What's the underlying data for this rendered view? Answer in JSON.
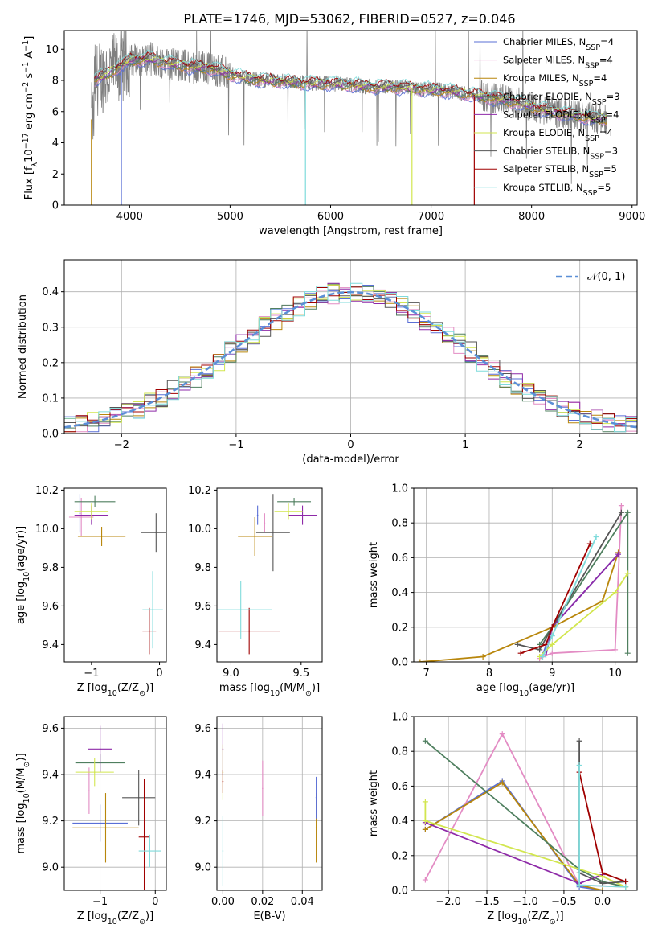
{
  "figure": {
    "title": "PLATE=1746, MJD=53062, FIBERID=0527, z=0.046"
  },
  "models": [
    {
      "name": "Chabrier MILES",
      "nssp": "4",
      "color": "#5a6fd6"
    },
    {
      "name": "Salpeter MILES",
      "nssp": "4",
      "color": "#e38cc4"
    },
    {
      "name": "Kroupa MILES",
      "nssp": "4",
      "color": "#b8860b"
    },
    {
      "name": "Chabrier ELODIE",
      "nssp": "3",
      "color": "#4f7f5f"
    },
    {
      "name": "Salpeter ELODIE",
      "nssp": "4",
      "color": "#8e2aa8"
    },
    {
      "name": "Kroupa ELODIE",
      "nssp": "4",
      "color": "#d2e64f"
    },
    {
      "name": "Chabrier STELIB",
      "nssp": "3",
      "color": "#555555"
    },
    {
      "name": "Salpeter STELIB",
      "nssp": "5",
      "color": "#a00000"
    },
    {
      "name": "Kroupa STELIB",
      "nssp": "5",
      "color": "#7fdbdb"
    }
  ],
  "chart_data": [
    {
      "id": "spectrum",
      "type": "line",
      "xlabel": "wavelength [Angstrom, rest frame]",
      "ylabel_main": "Flux [f",
      "ylabel_sub": "λ",
      "ylabel_tail": "10",
      "ylabel_sup": "−17",
      "ylabel_end": " erg cm",
      "ylabel_sup2": "−2",
      "ylabel_end2": " s",
      "ylabel_sup3": "−1",
      "ylabel_end3": " A",
      "ylabel_sup4": "−1",
      "ylabel_close": "]",
      "xlim": [
        3350,
        9050
      ],
      "ylim": [
        0,
        11.2
      ],
      "xticks": [
        4000,
        5000,
        6000,
        7000,
        8000,
        9000
      ],
      "yticks": [
        0,
        2,
        4,
        6,
        8,
        10
      ],
      "xrange_data": [
        3620,
        8750
      ],
      "data_color": "#808080",
      "legend_position": "top-right",
      "legend_suffix_main": "N",
      "legend_suffix_sub": "SSP",
      "spectrum_continuum": [
        [
          3650,
          8.0
        ],
        [
          3800,
          8.5
        ],
        [
          4000,
          9.3
        ],
        [
          4200,
          9.4
        ],
        [
          4400,
          9.1
        ],
        [
          4600,
          8.9
        ],
        [
          4800,
          8.8
        ],
        [
          5000,
          8.4
        ],
        [
          5200,
          8.1
        ],
        [
          5400,
          8.0
        ],
        [
          5600,
          7.9
        ],
        [
          5800,
          7.8
        ],
        [
          6000,
          7.8
        ],
        [
          6200,
          7.7
        ],
        [
          6400,
          7.6
        ],
        [
          6600,
          7.6
        ],
        [
          6800,
          7.5
        ],
        [
          7000,
          7.4
        ],
        [
          7200,
          7.3
        ],
        [
          7400,
          7.1
        ],
        [
          7600,
          6.9
        ],
        [
          7800,
          6.7
        ],
        [
          8000,
          6.3
        ],
        [
          8200,
          6.0
        ],
        [
          8400,
          5.8
        ],
        [
          8600,
          5.6
        ],
        [
          8750,
          5.5
        ]
      ],
      "model_drops": [
        {
          "model": 2,
          "x": 3620
        },
        {
          "model": 3,
          "x": 3915
        },
        {
          "model": 0,
          "x": 3918
        },
        {
          "model": 8,
          "x": 5750
        },
        {
          "model": 5,
          "x": 6810
        },
        {
          "model": 7,
          "x": 7430
        }
      ]
    },
    {
      "id": "residuals",
      "type": "area",
      "xlabel": "(data-model)/error",
      "ylabel": "Normed distribution",
      "xlim": [
        -2.5,
        2.5
      ],
      "ylim": [
        0,
        0.49
      ],
      "xticks": [
        -2,
        -1,
        0,
        1,
        2
      ],
      "xticklabels": [
        "−2",
        "−1",
        "0",
        "1",
        "2"
      ],
      "yticks": [
        0.0,
        0.1,
        0.2,
        0.3,
        0.4
      ],
      "yticklabels": [
        "0.0",
        "0.1",
        "0.2",
        "0.3",
        "0.4"
      ],
      "bin_width": 0.1,
      "legend_position": "top-right",
      "normal_label": "𝒩(0, 1)",
      "normal_color": "#5b8fd6"
    },
    {
      "id": "age-vs-Z",
      "type": "scatter",
      "xlabel": "Z [log",
      "xlabel_sub": "10",
      "xlabel_tail": "(Z/Z",
      "xlabel_sub2": "⊙",
      "xlabel_close": ")]",
      "ylabel": "age  [log",
      "ylabel_sub": "10",
      "ylabel_tail": "(age/yr)]",
      "xlim": [
        -1.4,
        0.1
      ],
      "ylim": [
        9.31,
        10.21
      ],
      "xticks": [
        -1,
        0
      ],
      "xticklabels": [
        "−1",
        "0"
      ],
      "yticks": [
        9.4,
        9.6,
        9.8,
        10.0,
        10.2
      ],
      "yticklabels": [
        "9.4",
        "9.6",
        "9.8",
        "10.0",
        "10.2"
      ],
      "points": [
        {
          "model": 0,
          "x": -1.17,
          "y": 10.08,
          "xerr": 0.0,
          "yerr": 0.1
        },
        {
          "model": 1,
          "x": -1.15,
          "y": 10.06,
          "xerr": 0.18,
          "yerr": 0.1
        },
        {
          "model": 2,
          "x": -0.85,
          "y": 9.96,
          "xerr": 0.35,
          "yerr": 0.05
        },
        {
          "model": 3,
          "x": -0.95,
          "y": 10.14,
          "xerr": 0.3,
          "yerr": 0.03
        },
        {
          "model": 4,
          "x": -1.0,
          "y": 10.07,
          "xerr": 0.25,
          "yerr": 0.05
        },
        {
          "model": 5,
          "x": -1.0,
          "y": 10.09,
          "xerr": 0.25,
          "yerr": 0.04
        },
        {
          "model": 6,
          "x": -0.05,
          "y": 9.98,
          "xerr": 0.22,
          "yerr": 0.1
        },
        {
          "model": 7,
          "x": -0.15,
          "y": 9.47,
          "xerr": 0.1,
          "yerr": 0.12
        },
        {
          "model": 8,
          "x": -0.1,
          "y": 9.58,
          "xerr": 0.15,
          "yerr": 0.2
        }
      ]
    },
    {
      "id": "age-vs-mass",
      "type": "scatter",
      "xlabel": "mass [log",
      "xlabel_sub": "10",
      "xlabel_tail": "(M/M",
      "xlabel_sub2": "⊙",
      "xlabel_close": ")]",
      "xlim": [
        8.9,
        9.65
      ],
      "ylim": [
        9.31,
        10.21
      ],
      "xticks": [
        9.0,
        9.5
      ],
      "xticklabels": [
        "9.0",
        "9.5"
      ],
      "yticks": [
        9.4,
        9.6,
        9.8,
        10.0,
        10.2
      ],
      "yticklabels": [
        "9.4",
        "9.6",
        "9.8",
        "10.0",
        "10.2"
      ],
      "points": [
        {
          "model": 0,
          "x": 9.19,
          "y": 10.07,
          "xerr": 0.0,
          "yerr": 0.05
        },
        {
          "model": 1,
          "x": 9.24,
          "y": 10.03,
          "xerr": 0.0,
          "yerr": 0.05
        },
        {
          "model": 2,
          "x": 9.17,
          "y": 9.96,
          "xerr": 0.12,
          "yerr": 0.1
        },
        {
          "model": 3,
          "x": 9.45,
          "y": 10.14,
          "xerr": 0.12,
          "yerr": 0.02
        },
        {
          "model": 4,
          "x": 9.51,
          "y": 10.07,
          "xerr": 0.1,
          "yerr": 0.05
        },
        {
          "model": 5,
          "x": 9.41,
          "y": 10.09,
          "xerr": 0.1,
          "yerr": 0.04
        },
        {
          "model": 6,
          "x": 9.3,
          "y": 9.98,
          "xerr": 0.12,
          "yerr": 0.2
        },
        {
          "model": 7,
          "x": 9.13,
          "y": 9.47,
          "xerr": 0.22,
          "yerr": 0.12
        },
        {
          "model": 8,
          "x": 9.07,
          "y": 9.58,
          "xerr": 0.22,
          "yerr": 0.15
        }
      ]
    },
    {
      "id": "massweight-vs-age",
      "type": "line",
      "xlabel": "age  [log",
      "xlabel_sub": "10",
      "xlabel_tail": "(age/yr)]",
      "ylabel": "mass weight",
      "xlim": [
        6.8,
        10.35
      ],
      "ylim": [
        0,
        1.0
      ],
      "xticks": [
        7,
        8,
        9,
        10
      ],
      "yticks": [
        0.0,
        0.2,
        0.4,
        0.6,
        0.8,
        1.0
      ],
      "yticklabels": [
        "0.0",
        "0.2",
        "0.4",
        "0.6",
        "0.8",
        "1.0"
      ],
      "series": [
        {
          "model": 0,
          "x": [
            8.85,
            9.0,
            10.05
          ],
          "y": [
            0.04,
            0.2,
            0.62
          ]
        },
        {
          "model": 1,
          "x": [
            8.8,
            9.0,
            10.0,
            10.1
          ],
          "y": [
            0.02,
            0.05,
            0.07,
            0.9
          ]
        },
        {
          "model": 2,
          "x": [
            6.9,
            7.9,
            9.0,
            9.8,
            10.05
          ],
          "y": [
            0.0,
            0.03,
            0.2,
            0.35,
            0.63
          ]
        },
        {
          "model": 3,
          "x": [
            8.8,
            9.0,
            10.2,
            10.2
          ],
          "y": [
            0.1,
            0.2,
            0.86,
            0.05
          ]
        },
        {
          "model": 4,
          "x": [
            8.9,
            9.0,
            10.05
          ],
          "y": [
            0.04,
            0.2,
            0.62
          ]
        },
        {
          "model": 5,
          "x": [
            8.8,
            9.0,
            10.0,
            10.2
          ],
          "y": [
            0.03,
            0.1,
            0.4,
            0.51
          ]
        },
        {
          "model": 6,
          "x": [
            8.45,
            8.8,
            9.0,
            10.1
          ],
          "y": [
            0.1,
            0.07,
            0.2,
            0.86
          ]
        },
        {
          "model": 7,
          "x": [
            8.5,
            8.9,
            9.0,
            9.6
          ],
          "y": [
            0.05,
            0.1,
            0.2,
            0.68
          ]
        },
        {
          "model": 8,
          "x": [
            8.85,
            9.0,
            9.7
          ],
          "y": [
            0.03,
            0.15,
            0.72
          ]
        }
      ]
    },
    {
      "id": "mass-vs-Z",
      "type": "scatter",
      "xlabel": "Z [log",
      "xlabel_sub": "10",
      "xlabel_tail": "(Z/Z",
      "xlabel_sub2": "⊙",
      "xlabel_close": ")]",
      "ylabel": "mass [log",
      "ylabel_sub": "10",
      "ylabel_tail": "(M/M",
      "ylabel_sub2": "⊙",
      "ylabel_close": ")]",
      "xlim": [
        -1.65,
        0.2
      ],
      "ylim": [
        8.9,
        9.65
      ],
      "xticks": [
        -1,
        0
      ],
      "xticklabels": [
        "−1",
        "0"
      ],
      "yticks": [
        9.0,
        9.2,
        9.4,
        9.6
      ],
      "yticklabels": [
        "9.0",
        "9.2",
        "9.4",
        "9.6"
      ],
      "points": [
        {
          "model": 0,
          "x": -1.0,
          "y": 9.19,
          "xerr": 0.5,
          "yerr": 0.08
        },
        {
          "model": 1,
          "x": -1.2,
          "y": 9.33,
          "xerr": 0.0,
          "yerr": 0.1
        },
        {
          "model": 2,
          "x": -0.9,
          "y": 9.17,
          "xerr": 0.6,
          "yerr": 0.15
        },
        {
          "model": 3,
          "x": -1.0,
          "y": 9.45,
          "xerr": 0.45,
          "yerr": 0.04
        },
        {
          "model": 4,
          "x": -1.0,
          "y": 9.51,
          "xerr": 0.22,
          "yerr": 0.1
        },
        {
          "model": 5,
          "x": -1.1,
          "y": 9.41,
          "xerr": 0.35,
          "yerr": 0.06
        },
        {
          "model": 6,
          "x": -0.3,
          "y": 9.3,
          "xerr": 0.3,
          "yerr": 0.12
        },
        {
          "model": 7,
          "x": -0.2,
          "y": 9.13,
          "xerr": 0.1,
          "yerr": 0.25
        },
        {
          "model": 8,
          "x": -0.1,
          "y": 9.07,
          "xerr": 0.2,
          "yerr": 0.07
        }
      ]
    },
    {
      "id": "mass-vs-ebv",
      "type": "scatter",
      "xlabel": "E(B-V)",
      "xlim": [
        -0.003,
        0.05
      ],
      "ylim": [
        8.9,
        9.65
      ],
      "xticks": [
        0.0,
        0.02,
        0.04
      ],
      "xticklabels": [
        "0.00",
        "0.02",
        "0.04"
      ],
      "yticks": [
        9.0,
        9.2,
        9.4,
        9.6
      ],
      "yticklabels": [
        "9.0",
        "9.2",
        "9.4",
        "9.6"
      ],
      "points": [
        {
          "model": 4,
          "x": 0.0,
          "y": 9.51,
          "xerr": 0.0,
          "yerr": 0.11
        },
        {
          "model": 5,
          "x": 0.0,
          "y": 9.41,
          "xerr": 0.0,
          "yerr": 0.12
        },
        {
          "model": 7,
          "x": 0.0,
          "y": 9.37,
          "xerr": 0.0,
          "yerr": 0.05
        },
        {
          "model": 8,
          "x": 0.0,
          "y": 9.07,
          "xerr": 0.0,
          "yerr": 0.15
        },
        {
          "model": 1,
          "x": 0.02,
          "y": 9.34,
          "xerr": 0.0,
          "yerr": 0.12
        },
        {
          "model": 2,
          "x": 0.047,
          "y": 9.17,
          "xerr": 0.0,
          "yerr": 0.15
        },
        {
          "model": 0,
          "x": 0.047,
          "y": 9.3,
          "xerr": 0.0,
          "yerr": 0.09
        }
      ]
    },
    {
      "id": "massweight-vs-Z",
      "type": "line",
      "xlabel": "Z [log",
      "xlabel_sub": "10",
      "xlabel_tail": "(Z/Z",
      "xlabel_sub2": "⊙",
      "xlabel_close": ")]",
      "ylabel": "mass weight",
      "xlim": [
        -2.45,
        0.45
      ],
      "ylim": [
        0,
        1.0
      ],
      "xticks": [
        -2.0,
        -1.5,
        -1.0,
        -0.5,
        0.0
      ],
      "xticklabels": [
        "−2.0",
        "−1.5",
        "−1.0",
        "−0.5",
        "0.0"
      ],
      "yticks": [
        0.0,
        0.2,
        0.4,
        0.6,
        0.8,
        1.0
      ],
      "yticklabels": [
        "0.0",
        "0.2",
        "0.4",
        "0.6",
        "0.8",
        "1.0"
      ],
      "series": [
        {
          "model": 0,
          "x": [
            -2.3,
            -1.3,
            -0.3,
            0.0
          ],
          "y": [
            0.35,
            0.63,
            0.02,
            0.0
          ]
        },
        {
          "model": 1,
          "x": [
            -2.3,
            -1.3,
            -0.3,
            0.3
          ],
          "y": [
            0.06,
            0.9,
            0.03,
            0.02
          ]
        },
        {
          "model": 2,
          "x": [
            -2.3,
            -1.3,
            -0.3,
            0.0
          ],
          "y": [
            0.35,
            0.62,
            0.03,
            0.0
          ]
        },
        {
          "model": 3,
          "x": [
            -2.3,
            -0.3,
            0.0,
            0.3
          ],
          "y": [
            0.86,
            0.12,
            0.05,
            0.02
          ]
        },
        {
          "model": 4,
          "x": [
            -2.3,
            -0.3,
            0.0
          ],
          "y": [
            0.39,
            0.04,
            0.09
          ]
        },
        {
          "model": 5,
          "x": [
            -2.3,
            -2.3,
            0.0,
            0.3
          ],
          "y": [
            0.51,
            0.4,
            0.08,
            0.02
          ]
        },
        {
          "model": 6,
          "x": [
            -0.3,
            -0.3,
            0.0,
            0.3
          ],
          "y": [
            0.86,
            0.1,
            0.04,
            0.05
          ]
        },
        {
          "model": 7,
          "x": [
            -0.3,
            0.0,
            0.3
          ],
          "y": [
            0.68,
            0.1,
            0.05
          ]
        },
        {
          "model": 8,
          "x": [
            -0.3,
            -0.3,
            0.3
          ],
          "y": [
            0.72,
            0.03,
            0.02
          ]
        }
      ]
    }
  ]
}
